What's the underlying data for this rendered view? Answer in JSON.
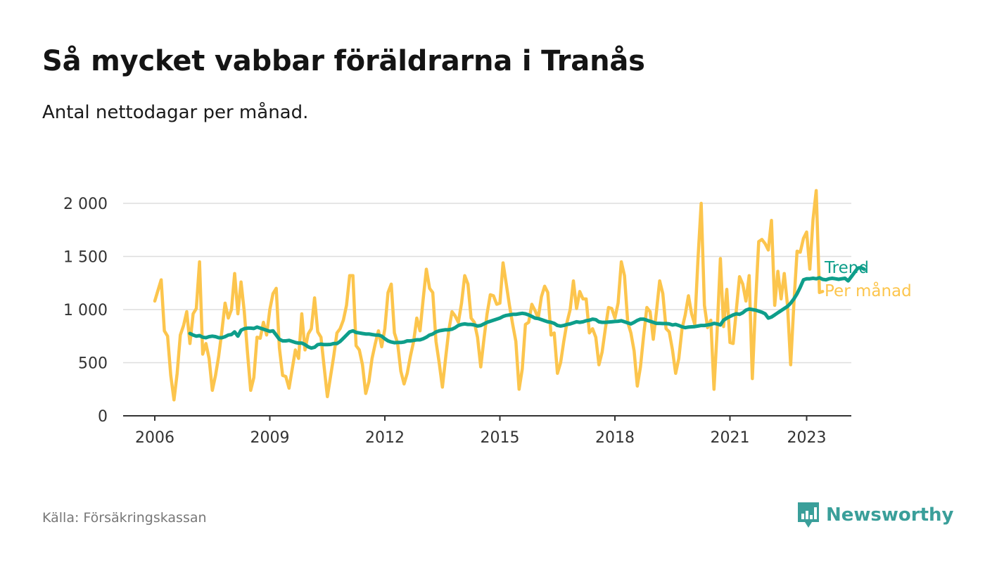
{
  "title": "Så mycket vabbar föräldrarna i Tranås",
  "subtitle": "Antal nettodagar per månad.",
  "source": "Källa: Försäkringskassan",
  "brand": {
    "name": "Newsworthy",
    "icon": "newsworthy-logo-icon"
  },
  "colors": {
    "per_month": "#fcc54d",
    "trend": "#0e9e8a",
    "grid": "#dedede",
    "axis": "#333333",
    "brand": "#3a9f9a"
  },
  "chart_data": {
    "type": "line",
    "x_start": "2006-01",
    "x_ticks": [
      "2006",
      "2009",
      "2012",
      "2015",
      "2018",
      "2021",
      "2023"
    ],
    "y_ticks": [
      "0",
      "500",
      "1 000",
      "1 500",
      "2 000"
    ],
    "ylim": [
      0,
      2100
    ],
    "grid": true,
    "legend": "end-labels",
    "series": [
      {
        "name": "Trend",
        "start": "2006-12",
        "values": [
          775,
          760,
          750,
          755,
          740,
          735,
          745,
          750,
          745,
          735,
          735,
          745,
          760,
          765,
          790,
          750,
          805,
          820,
          825,
          825,
          822,
          835,
          825,
          815,
          805,
          795,
          800,
          760,
          720,
          705,
          705,
          710,
          700,
          690,
          685,
          685,
          670,
          650,
          638,
          645,
          670,
          675,
          670,
          670,
          672,
          680,
          680,
          700,
          730,
          760,
          790,
          800,
          785,
          780,
          775,
          770,
          770,
          765,
          760,
          760,
          750,
          725,
          705,
          695,
          688,
          690,
          690,
          695,
          705,
          705,
          710,
          715,
          715,
          725,
          740,
          760,
          770,
          790,
          800,
          805,
          810,
          810,
          815,
          830,
          850,
          860,
          865,
          860,
          860,
          855,
          845,
          850,
          865,
          880,
          890,
          900,
          910,
          920,
          935,
          945,
          950,
          955,
          955,
          960,
          965,
          960,
          950,
          935,
          920,
          915,
          905,
          895,
          885,
          880,
          870,
          850,
          845,
          850,
          860,
          865,
          875,
          885,
          880,
          885,
          895,
          900,
          910,
          905,
          885,
          880,
          880,
          882,
          885,
          888,
          890,
          895,
          885,
          875,
          865,
          880,
          898,
          910,
          910,
          900,
          890,
          880,
          870,
          870,
          868,
          868,
          865,
          855,
          860,
          850,
          838,
          830,
          835,
          838,
          840,
          845,
          850,
          850,
          855,
          860,
          870,
          865,
          855,
          900,
          920,
          935,
          950,
          960,
          955,
          970,
          995,
          1005,
          1000,
          995,
          985,
          975,
          960,
          920,
          930,
          950,
          970,
          990,
          1010,
          1030,
          1060,
          1100,
          1150,
          1210,
          1280,
          1290,
          1290,
          1295,
          1290,
          1300,
          1285,
          1280,
          1290,
          1295,
          1290,
          1285,
          1290,
          1295,
          1270,
          1310,
          1350,
          1390,
          1395,
          1380
        ]
      },
      {
        "name": "Per månad",
        "start": "2006-01",
        "values": [
          1080,
          1180,
          1280,
          800,
          750,
          380,
          150,
          400,
          760,
          850,
          980,
          680,
          960,
          1010,
          1450,
          580,
          680,
          540,
          240,
          380,
          560,
          800,
          1060,
          920,
          1000,
          1340,
          960,
          1260,
          980,
          600,
          240,
          360,
          740,
          730,
          880,
          760,
          1000,
          1150,
          1200,
          640,
          380,
          370,
          260,
          440,
          620,
          540,
          960,
          620,
          770,
          820,
          1110,
          790,
          740,
          460,
          180,
          370,
          560,
          780,
          820,
          900,
          1040,
          1320,
          1320,
          660,
          620,
          480,
          210,
          320,
          540,
          680,
          800,
          650,
          820,
          1160,
          1240,
          780,
          680,
          420,
          300,
          400,
          560,
          700,
          920,
          800,
          1100,
          1380,
          1200,
          1160,
          700,
          500,
          270,
          540,
          800,
          980,
          940,
          880,
          1060,
          1320,
          1240,
          920,
          880,
          740,
          460,
          720,
          960,
          1140,
          1130,
          1050,
          1060,
          1440,
          1240,
          1040,
          860,
          700,
          250,
          440,
          860,
          880,
          1050,
          990,
          920,
          1120,
          1220,
          1160,
          760,
          780,
          400,
          500,
          700,
          880,
          1000,
          1270,
          1010,
          1170,
          1100,
          1100,
          780,
          820,
          740,
          480,
          600,
          820,
          1020,
          1010,
          920,
          1060,
          1450,
          1320,
          880,
          780,
          610,
          280,
          460,
          760,
          1020,
          980,
          720,
          980,
          1270,
          1150,
          820,
          790,
          620,
          400,
          540,
          820,
          950,
          1130,
          960,
          860,
          1480,
          2000,
          1040,
          830,
          900,
          250,
          800,
          1480,
          840,
          1190,
          690,
          680,
          1000,
          1310,
          1240,
          1080,
          1320,
          350,
          1050,
          1640,
          1660,
          1620,
          1560,
          1840,
          1040,
          1360,
          1100,
          1340,
          1040,
          480,
          1050,
          1550,
          1540,
          1670,
          1730,
          1380,
          1850,
          2120,
          1160,
          1170
        ]
      }
    ]
  }
}
